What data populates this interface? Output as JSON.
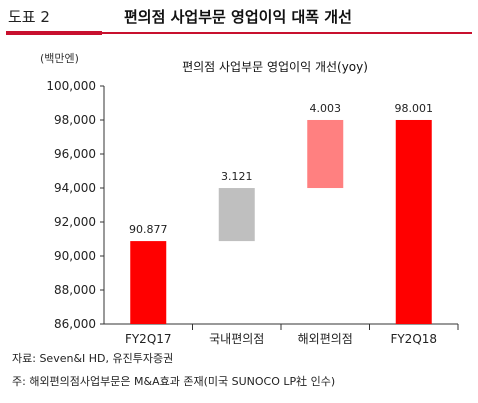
{
  "header": {
    "figure_label": "도표 2",
    "title": "편의점 사업부문 영업이익 대폭 개선",
    "accent_color": "#c8102e"
  },
  "chart_data": {
    "type": "bar",
    "variant": "waterfall",
    "title": "편의점 사업부문 영업이익 개선(yoy)",
    "unit_label": "(백만엔)",
    "categories": [
      "FY2Q17",
      "국내편의점",
      "해외편의점",
      "FY2Q18"
    ],
    "bars": [
      {
        "category": "FY2Q17",
        "base": 86000,
        "top": 90877,
        "label": "90.877",
        "color": "#ff0000"
      },
      {
        "category": "국내편의점",
        "base": 90877,
        "top": 93998,
        "label": "3.121",
        "color": "#bfbfbf"
      },
      {
        "category": "해외편의점",
        "base": 93998,
        "top": 98001,
        "label": "4.003",
        "color": "#ff8080"
      },
      {
        "category": "FY2Q18",
        "base": 86000,
        "top": 98001,
        "label": "98.001",
        "color": "#ff0000"
      }
    ],
    "ylim": [
      86000,
      100000
    ],
    "yticks": [
      86000,
      88000,
      90000,
      92000,
      94000,
      96000,
      98000,
      100000
    ],
    "ytick_labels": [
      "86,000",
      "88,000",
      "90,000",
      "92,000",
      "94,000",
      "96,000",
      "98,000",
      "100,000"
    ],
    "grid": false
  },
  "footer": {
    "source": "자료: Seven&I HD, 유진투자증권",
    "note": "주: 해외편의점사업부문은 M&A효과 존재(미국 SUNOCO LP社 인수)"
  }
}
